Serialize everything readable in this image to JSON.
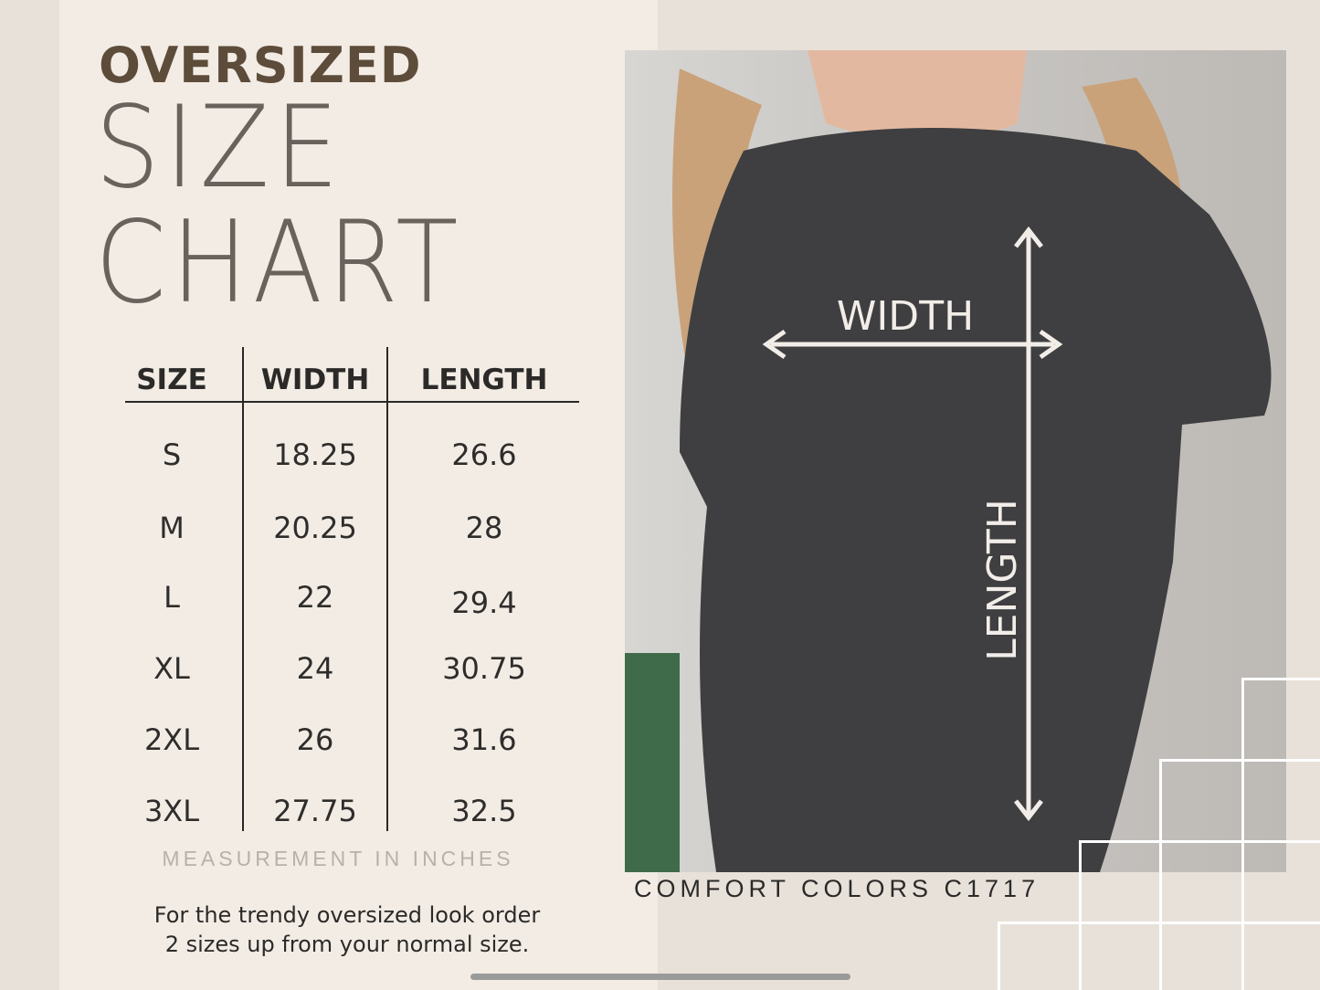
{
  "title": {
    "line1": "OVERSIZED",
    "line2": "SIZE",
    "line3": "CHART"
  },
  "table": {
    "headers": [
      "SIZE",
      "WIDTH",
      "LENGTH"
    ],
    "rows": [
      [
        "S",
        "18.25",
        "26.6"
      ],
      [
        "M",
        "20.25",
        "28"
      ],
      [
        "L",
        "22",
        "29.4"
      ],
      [
        "XL",
        "24",
        "30.75"
      ],
      [
        "2XL",
        "26",
        "31.6"
      ],
      [
        "3XL",
        "27.75",
        "32.5"
      ]
    ]
  },
  "measurement_note": "MEASUREMENT IN INCHES",
  "order_note": {
    "line1": "For the trendy oversized look order",
    "line2": "2 sizes up from your normal size."
  },
  "photo": {
    "width_label": "WIDTH",
    "length_label": "LENGTH"
  },
  "brand": "COMFORT COLORS C1717",
  "colors": {
    "title_brown": "#5d4c3a",
    "background": "#e8e1da",
    "panel": "#f2ece5",
    "shirt": "#3f3f41"
  }
}
